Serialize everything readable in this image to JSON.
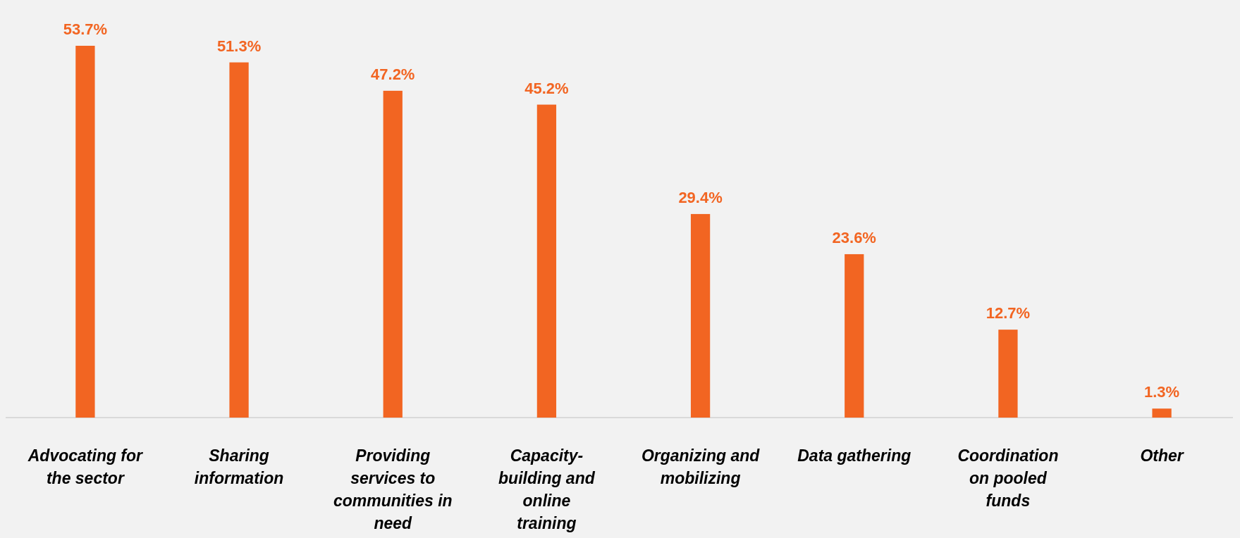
{
  "chart_data": {
    "type": "bar",
    "categories": [
      "Advocating for the sector",
      "Sharing information",
      "Providing services to communities in need",
      "Capacity-building and online training",
      "Organizing and mobilizing",
      "Data gathering",
      "Coordination on pooled funds",
      "Other"
    ],
    "values": [
      53.7,
      51.3,
      47.2,
      45.2,
      29.4,
      23.6,
      12.7,
      1.3
    ],
    "value_labels": [
      "53.7%",
      "51.3%",
      "47.2%",
      "45.2%",
      "29.4%",
      "23.6%",
      "12.7%",
      "1.3%"
    ],
    "color": "#f26522"
  }
}
